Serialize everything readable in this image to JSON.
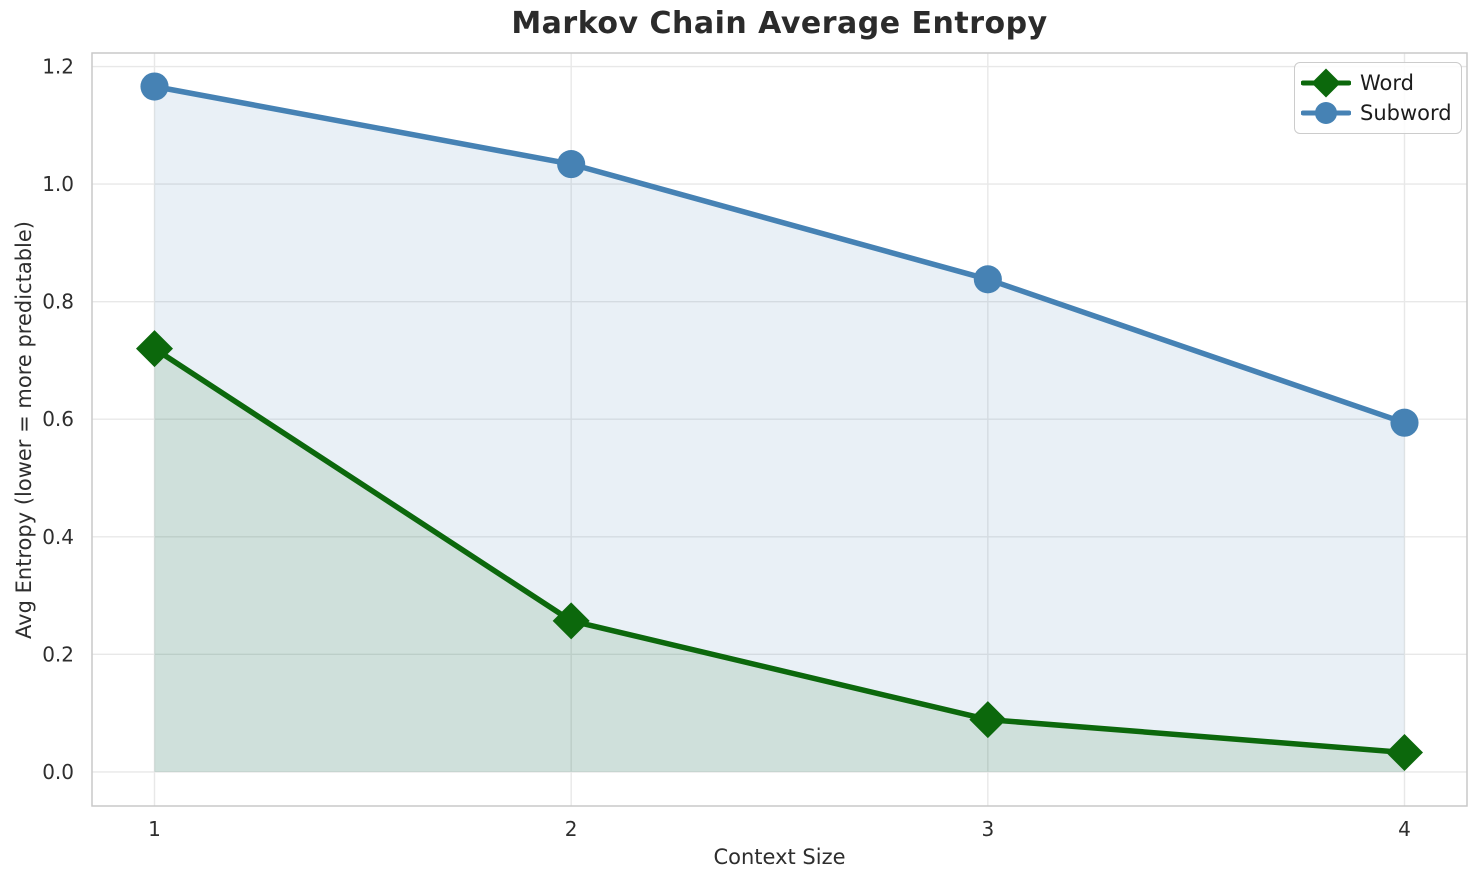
{
  "chart": {
    "title": "Markov Chain Average Entropy",
    "xlabel": "Context Size",
    "ylabel": "Avg Entropy (lower = more predictable)"
  },
  "legend": {
    "items": [
      {
        "label": "Word"
      },
      {
        "label": "Subword"
      }
    ]
  },
  "chart_data": {
    "type": "line",
    "title": "Markov Chain Average Entropy",
    "xlabel": "Context Size",
    "ylabel": "Avg Entropy (lower = more predictable)",
    "x": [
      1,
      2,
      3,
      4
    ],
    "series": [
      {
        "name": "Word",
        "values": [
          0.72,
          0.257,
          0.089,
          0.033
        ],
        "color": "#0c680c",
        "marker": "diamond",
        "fill_color": "rgba(0,100,0,0.11)"
      },
      {
        "name": "Subword",
        "values": [
          1.166,
          1.034,
          0.838,
          0.594
        ],
        "color": "#4682b4",
        "marker": "circle",
        "fill_color": "rgba(70,130,180,0.12)"
      }
    ],
    "fill_baseline": 0,
    "xticks": [
      1,
      2,
      3,
      4
    ],
    "xtick_labels": [
      "1",
      "2",
      "3",
      "4"
    ],
    "yticks": [
      0.0,
      0.2,
      0.4,
      0.6,
      0.8,
      1.0,
      1.2
    ],
    "ytick_labels": [
      "0.0",
      "0.2",
      "0.4",
      "0.6",
      "0.8",
      "1.0",
      "1.2"
    ],
    "xlim": [
      0.85,
      4.15
    ],
    "ylim": [
      -0.058,
      1.223
    ],
    "grid": true,
    "grid_color": "#e8e8e8",
    "spine_color": "#c9c9c9",
    "legend_position": "upper right"
  }
}
